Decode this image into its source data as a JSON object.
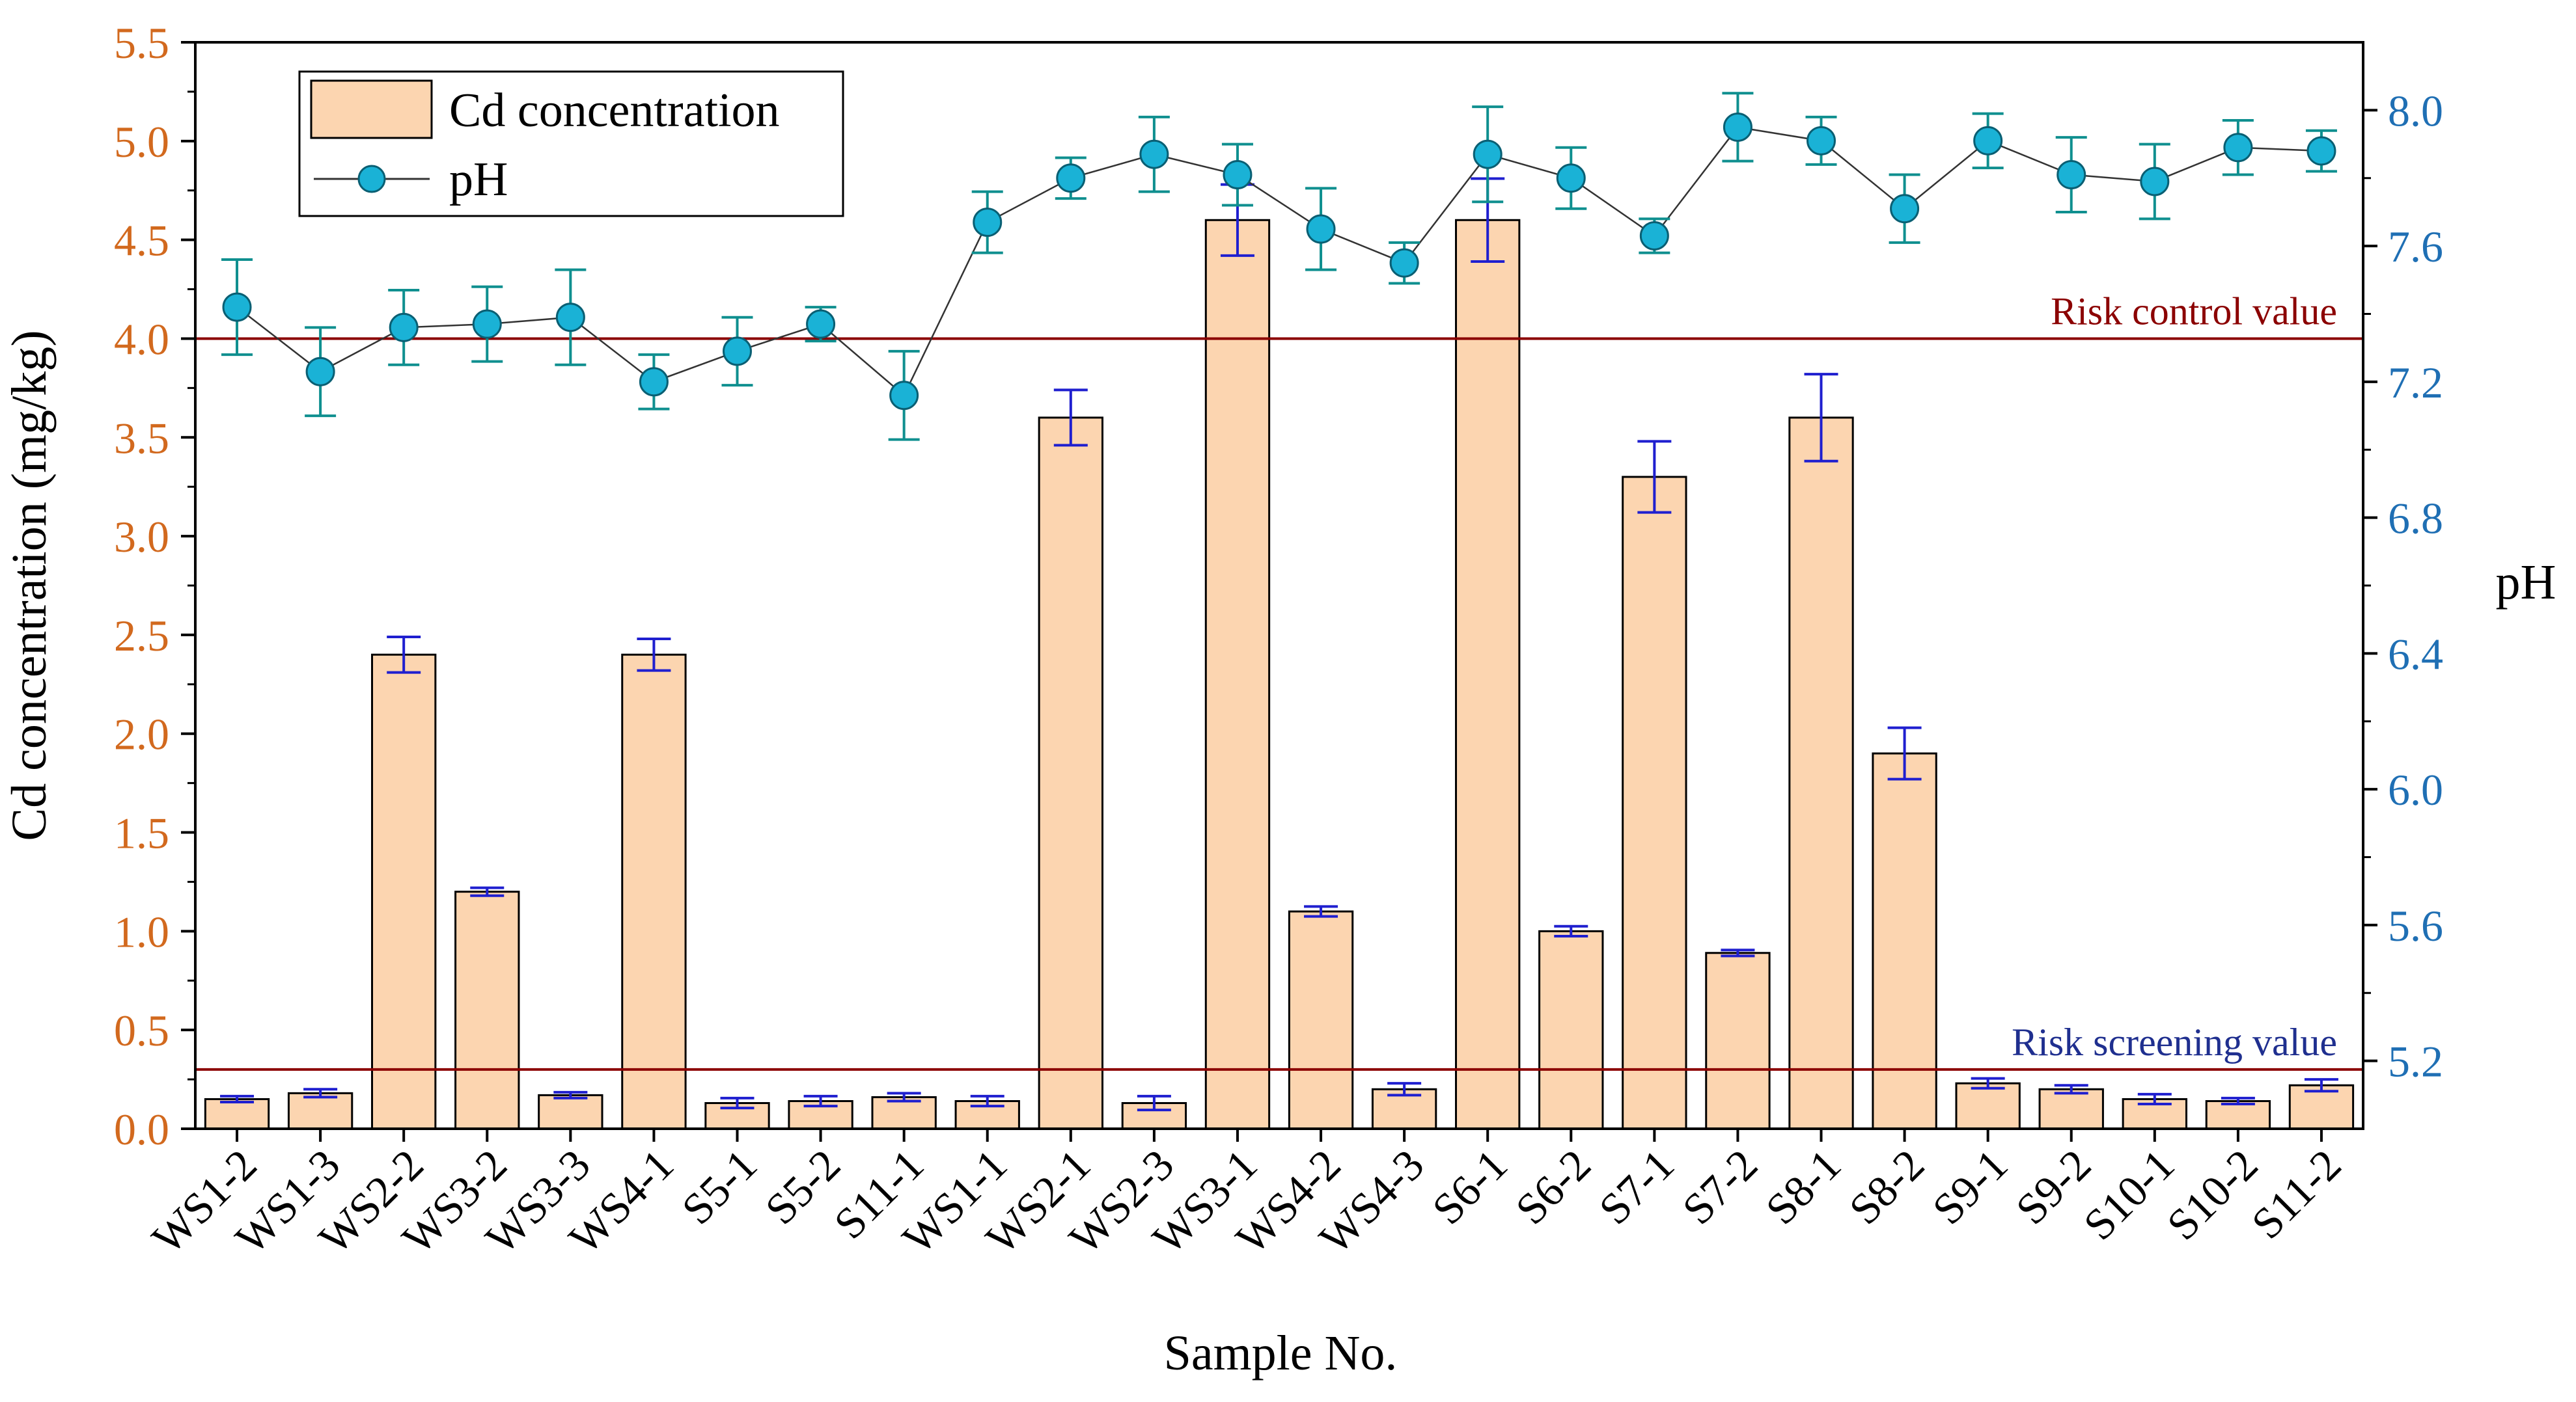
{
  "chart_data": {
    "type": "bar",
    "xlabel": "Sample No.",
    "ylabel": "Cd concentration (mg/kg)",
    "y2label": "pH",
    "categories": [
      "WS1-2",
      "WS1-3",
      "WS2-2",
      "WS3-2",
      "WS3-3",
      "WS4-1",
      "S5-1",
      "S5-2",
      "S11-1",
      "WS1-1",
      "WS2-1",
      "WS2-3",
      "WS3-1",
      "WS4-2",
      "WS4-3",
      "S6-1",
      "S6-2",
      "S7-1",
      "S7-2",
      "S8-1",
      "S8-2",
      "S9-1",
      "S9-2",
      "S10-1",
      "S10-2",
      "S11-2"
    ],
    "ylim": [
      0,
      5.5
    ],
    "yticks": [
      "0.0",
      "0.5",
      "1.0",
      "1.5",
      "2.0",
      "2.5",
      "3.0",
      "3.5",
      "4.0",
      "4.5",
      "5.0",
      "5.5"
    ],
    "y2lim": [
      5.0,
      8.2
    ],
    "y2ticks": [
      "5.2",
      "5.6",
      "6.0",
      "6.4",
      "6.8",
      "7.2",
      "7.6",
      "8.0"
    ],
    "series": [
      {
        "name": "Cd concentration",
        "kind": "bar",
        "axis": "left",
        "values": [
          0.15,
          0.18,
          2.4,
          1.2,
          0.17,
          2.4,
          0.13,
          0.14,
          0.16,
          0.14,
          3.6,
          0.13,
          4.6,
          1.1,
          0.2,
          4.6,
          1.0,
          3.3,
          0.89,
          3.6,
          1.9,
          0.23,
          0.2,
          0.15,
          0.14,
          0.22
        ],
        "errors": [
          0.015,
          0.02,
          0.09,
          0.02,
          0.015,
          0.08,
          0.025,
          0.025,
          0.02,
          0.025,
          0.14,
          0.035,
          0.18,
          0.025,
          0.03,
          0.21,
          0.025,
          0.18,
          0.015,
          0.22,
          0.13,
          0.025,
          0.02,
          0.025,
          0.015,
          0.03
        ]
      },
      {
        "name": "pH",
        "kind": "line",
        "axis": "right",
        "values": [
          7.42,
          7.23,
          7.36,
          7.37,
          7.39,
          7.2,
          7.29,
          7.37,
          7.16,
          7.67,
          7.8,
          7.87,
          7.81,
          7.65,
          7.55,
          7.87,
          7.8,
          7.63,
          7.95,
          7.91,
          7.71,
          7.91,
          7.81,
          7.79,
          7.89,
          7.88
        ],
        "errors": [
          0.14,
          0.13,
          0.11,
          0.11,
          0.14,
          0.08,
          0.1,
          0.05,
          0.13,
          0.09,
          0.06,
          0.11,
          0.09,
          0.12,
          0.06,
          0.14,
          0.09,
          0.05,
          0.1,
          0.07,
          0.1,
          0.08,
          0.11,
          0.11,
          0.08,
          0.06
        ]
      }
    ],
    "reference_lines": [
      {
        "label": "Risk control value",
        "value": 4.0,
        "axis": "left",
        "color": "#8b0000"
      },
      {
        "label": "Risk screening value",
        "value": 0.3,
        "axis": "left",
        "color": "#8b0000",
        "label_color": "#1f2f8f"
      }
    ],
    "legend_position": "top-left",
    "colors": {
      "bar_fill": "#fcd5b0",
      "bar_stroke": "#000000",
      "bar_error": "#1f1fcf",
      "ph_marker_fill": "#1ab2d6",
      "ph_error": "#0f8f8f",
      "left_axis": "#d2691e",
      "right_axis": "#1f6fb4"
    }
  }
}
